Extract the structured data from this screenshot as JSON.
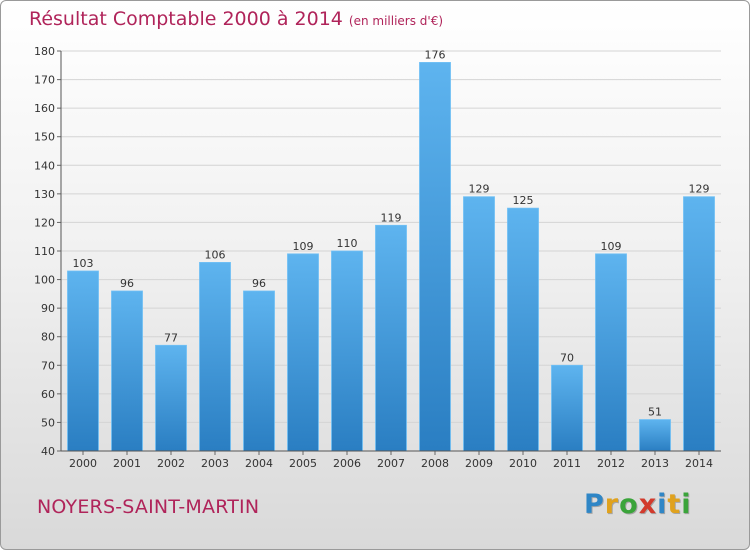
{
  "chart_data": {
    "type": "bar",
    "title": "Résultat Comptable 2000 à 2014",
    "subtitle": "(en milliers d'€)",
    "categories": [
      "2000",
      "2001",
      "2002",
      "2003",
      "2004",
      "2005",
      "2006",
      "2007",
      "2008",
      "2009",
      "2010",
      "2011",
      "2012",
      "2013",
      "2014"
    ],
    "values": [
      103,
      96,
      77,
      106,
      96,
      109,
      110,
      119,
      176,
      129,
      125,
      70,
      109,
      51,
      129
    ],
    "ylim": [
      40,
      180
    ],
    "yticks": [
      40,
      50,
      60,
      70,
      80,
      90,
      100,
      110,
      120,
      130,
      140,
      150,
      160,
      170,
      180
    ],
    "grid": true,
    "xlabel": "",
    "ylabel": "",
    "bar_color": "#4a9ede"
  },
  "footer": {
    "town": "NOYERS-SAINT-MARTIN",
    "logo_letters": [
      {
        "char": "P",
        "color": "#2f86c6"
      },
      {
        "char": "r",
        "color": "#e0a21d"
      },
      {
        "char": "o",
        "color": "#3aa43a"
      },
      {
        "char": "x",
        "color": "#d23a2c"
      },
      {
        "char": "i",
        "color": "#2f86c6"
      },
      {
        "char": "t",
        "color": "#e0a21d"
      },
      {
        "char": "i",
        "color": "#3aa43a"
      }
    ]
  },
  "colors": {
    "title": "#b0245a",
    "grid": "#d4d4d4"
  }
}
